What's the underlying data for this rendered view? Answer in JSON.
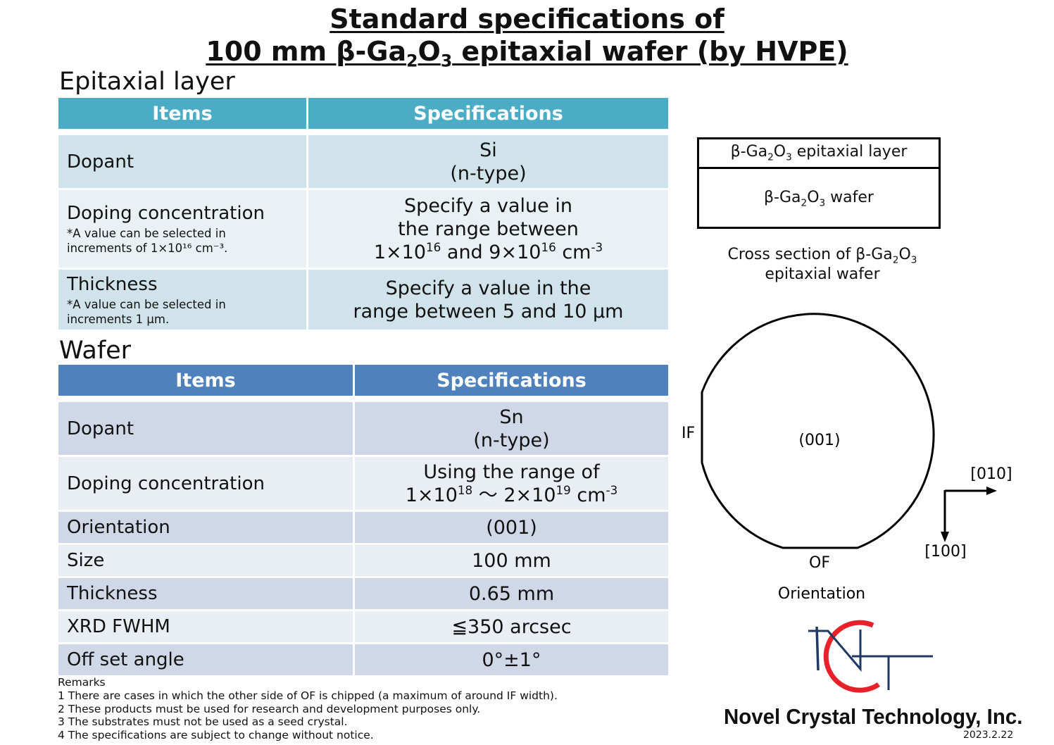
{
  "title": {
    "line1": "Standard specifications of",
    "line2_prefix": "100 mm β-Ga",
    "line2_sub1": "2",
    "line2_mid": "O",
    "line2_sub2": "3",
    "line2_suffix": " epitaxial wafer (by HVPE)"
  },
  "epitaxial": {
    "heading": "Epitaxial layer",
    "col_items": "Items",
    "col_specs": "Specifications",
    "dopant_label": "Dopant",
    "dopant_line1": "Si",
    "dopant_line2": "(n-type)",
    "doping_label": "Doping concentration",
    "doping_note1": "*A value can be selected in",
    "doping_note2": "increments of 1×10¹⁶ cm⁻³.",
    "doping_val1": "Specify a value in",
    "doping_val2": "the range between",
    "doping_val3a": "1×10",
    "doping_val3b": "16",
    "doping_val3c": " and 9×10",
    "doping_val3d": "16",
    "doping_val3e": " cm",
    "doping_val3f": "-3",
    "thick_label": "Thickness",
    "thick_note1": "*A value can be selected in",
    "thick_note2": "increments 1 μm.",
    "thick_val1": "Specify a value in the",
    "thick_val2": "range between 5 and 10 μm"
  },
  "wafer": {
    "heading": "Wafer",
    "col_items": "Items",
    "col_specs": "Specifications",
    "dopant_label": "Dopant",
    "dopant_line1": "Sn",
    "dopant_line2": "(n-type)",
    "doping_label": "Doping concentration",
    "doping_val1": "Using the range of",
    "doping_val2a": "1×10",
    "doping_val2b": "18",
    "doping_val2c": " ～ 2×10",
    "doping_val2d": "19",
    "doping_val2e": " cm",
    "doping_val2f": "-3",
    "rows": [
      {
        "label": "Orientation",
        "value": "(001)"
      },
      {
        "label": "Size",
        "value": "100 mm"
      },
      {
        "label": "Thickness",
        "value": "0.65 mm"
      },
      {
        "label": "XRD FWHM",
        "value": "≦350 arcsec"
      },
      {
        "label": "Off set angle",
        "value": "0°±1°"
      }
    ]
  },
  "remarks": [
    "Remarks",
    "1 There are cases in which the other side of OF is chipped (a maximum of around IF width).",
    "2 These products must be used for research and development purposes only.",
    "3 The substrates must not be used as a seed crystal.",
    "4 The specifications are subject to change without notice."
  ],
  "cross_section": {
    "layer_a": "β-Ga",
    "layer_sub1": "2",
    "layer_b": "O",
    "layer_sub2": "3",
    "layer_c": " epitaxial layer",
    "wafer_c": " wafer",
    "caption1a": "Cross section of β-Ga",
    "caption1b": "2",
    "caption1c": "O",
    "caption1d": "3",
    "caption2": "epitaxial wafer"
  },
  "orientation_diagram": {
    "center_label": "(001)",
    "if_label": "IF",
    "of_label": "OF",
    "axis_right": "[010]",
    "axis_down": "[100]",
    "caption": "Orientation"
  },
  "company": "Novel Crystal Technology, Inc.",
  "date": "2023.2.22",
  "colors": {
    "epi_header": "#4bacc6",
    "wafer_header": "#4f81bd",
    "logo_red": "#e8202a",
    "logo_navy": "#1f3864"
  }
}
